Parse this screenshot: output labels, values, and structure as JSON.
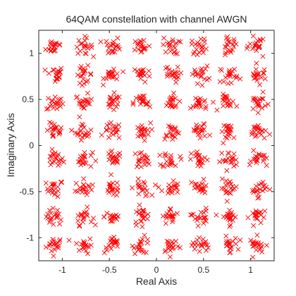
{
  "chart_data": {
    "type": "scatter",
    "title": "64QAM constellation with channel AWGN",
    "xlabel": "Real Axis",
    "ylabel": "Imaginary Axis",
    "xlim": [
      -1.25,
      1.25
    ],
    "ylim": [
      -1.25,
      1.25
    ],
    "xticks": [
      -1,
      -0.5,
      0,
      0.5,
      1
    ],
    "xtick_labels": [
      "-1",
      "-0.5",
      "0",
      "0.5",
      "1"
    ],
    "yticks": [
      -1,
      -0.5,
      0,
      0.5,
      1
    ],
    "ytick_labels": [
      "-1",
      "-0.5",
      "0",
      "0.5",
      "1"
    ],
    "grid": false,
    "marker": "x",
    "marker_color": "#ff0000",
    "constellation": {
      "levels": [
        -1.08,
        -0.771,
        -0.463,
        -0.154,
        0.154,
        0.463,
        0.771,
        1.08
      ],
      "points_per_symbol": 20,
      "noise_spread": 0.045
    }
  }
}
